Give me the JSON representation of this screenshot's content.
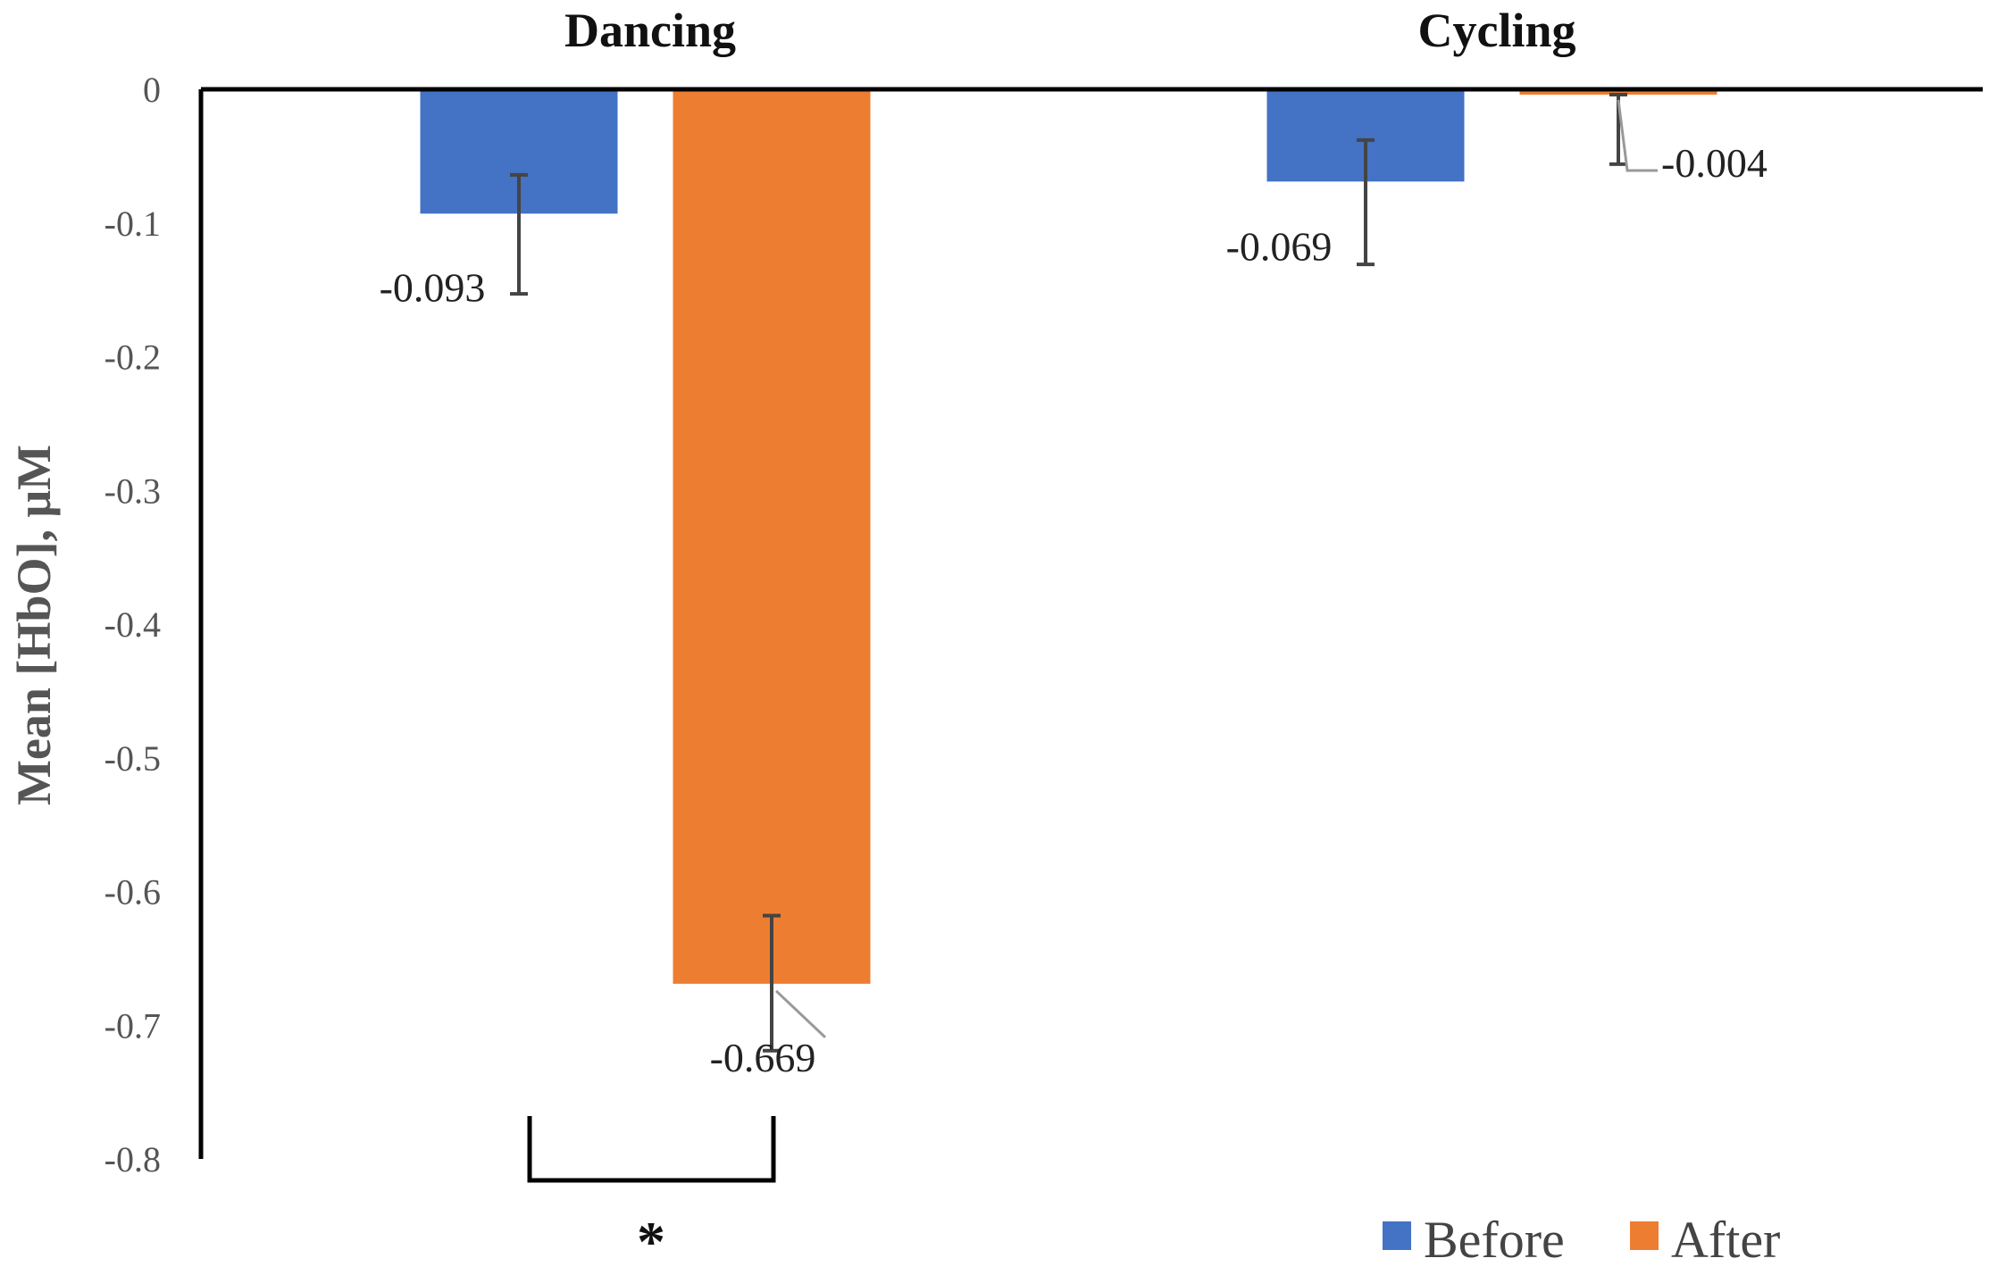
{
  "chart_data": {
    "type": "bar",
    "categories": [
      "Dancing",
      "Cycling"
    ],
    "series": [
      {
        "name": "Before",
        "values": [
          -0.093,
          -0.069
        ],
        "error_low": [
          0.06,
          0.062
        ],
        "error_high": [
          0.029,
          0.031
        ],
        "color": "#4472C4"
      },
      {
        "name": "After",
        "values": [
          -0.669,
          -0.004
        ],
        "error_low": [
          0.05,
          0.052
        ],
        "error_high": [
          0.051,
          0.0
        ],
        "color": "#ED7D31"
      }
    ],
    "data_labels": [
      [
        "-0.093",
        "-0.069"
      ],
      [
        "-0.669",
        "-0.004"
      ]
    ],
    "ylabel": "Mean [HbO], μM",
    "ylim": [
      -0.8,
      0
    ],
    "yticks": [
      "0",
      "-0.1",
      "-0.2",
      "-0.3",
      "-0.4",
      "-0.5",
      "-0.6",
      "-0.7",
      "-0.8"
    ],
    "ytick_values": [
      0,
      -0.1,
      -0.2,
      -0.3,
      -0.4,
      -0.5,
      -0.6,
      -0.7,
      -0.8
    ],
    "grid": false,
    "legend_position": "bottom-right",
    "significance": {
      "category": "Dancing",
      "marker": "*"
    }
  }
}
